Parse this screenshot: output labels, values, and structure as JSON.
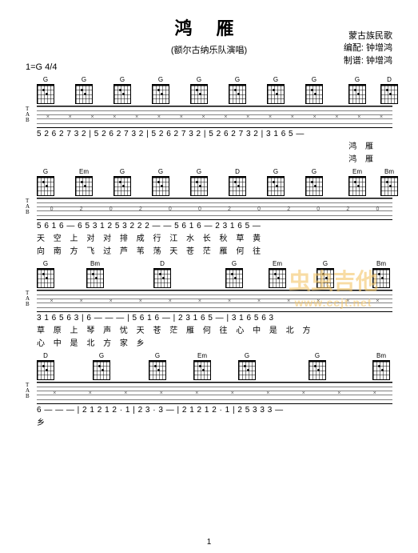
{
  "title": "鸿 雁",
  "subtitle": "(额尔古纳乐队演唱)",
  "credits": {
    "line1": "蒙古族民歌",
    "line2": "编配: 钟增鸿",
    "line3": "制谱: 钟增鸿"
  },
  "key": "1=G 4/4",
  "watermark": {
    "text": "虫虫吉他",
    "url": "www.ccjt.net"
  },
  "systems": [
    {
      "chords": [
        "G",
        "G",
        "G",
        "G",
        "G",
        "G",
        "G",
        "G",
        "G",
        "D"
      ],
      "chord_spacing": [
        0,
        48,
        96,
        144,
        192,
        240,
        288,
        336,
        390,
        430
      ],
      "tab_marks": [
        "×",
        "×",
        "×",
        "×",
        "×",
        "×",
        "×",
        "×",
        "×",
        "×",
        "×",
        "×",
        "×",
        "×",
        "×",
        "×"
      ],
      "jianpu": "5 2 6 2 7 3 2 | 5 2 6 2 7 3 2 | 5 2 6 2 7 3 2 | 5 2 6 2 7 3 2 | 3 1 6 5 —",
      "lyrics1": "",
      "lyrics2_right": "鸿  雁",
      "lyrics3_right": "鸿  雁"
    },
    {
      "chords": [
        "G",
        "Em",
        "G",
        "G",
        "G",
        "D",
        "G",
        "G",
        "Em",
        "Bm"
      ],
      "chord_spacing": [
        0,
        48,
        96,
        144,
        192,
        240,
        288,
        336,
        390,
        430
      ],
      "tab_marks": [
        "0",
        "2",
        "0",
        "2",
        "0",
        "0",
        "2",
        "0",
        "2",
        "0",
        "2",
        "0"
      ],
      "jianpu": "5 6 1 6 — 6 5 3 1 2 5 3 2 2 2 — — 5 6 1 6 — 2 3 1 6 5 —",
      "lyrics1": "天 空 上    对 对 排 成   行         江 水 长    秋 草 黄",
      "lyrics2": "向 南 方    飞 过 芦 苇   荡         天 苍 茫    雁 何 往"
    },
    {
      "chords": [
        "G",
        "Bm",
        "D",
        "G",
        "Em",
        "G",
        "Bm"
      ],
      "chord_spacing": [
        0,
        62,
        146,
        236,
        290,
        350,
        420
      ],
      "tab_marks": [
        "×",
        "×",
        "×",
        "×",
        "×",
        "×",
        "×",
        "×",
        "×",
        "×",
        "×",
        "×"
      ],
      "jianpu": "3 1 6 5 6 3 | 6 — — — | 5 6 1 6 — | 2 3 1 6 5 — | 3 1 6 5 6 3",
      "lyrics1": "草 原 上 琴 声  忧       天 苍 茫    雁 何 往    心 中 是 北 方",
      "lyrics2": "心 中 是 北 方  家       乡"
    },
    {
      "chords": [
        "D",
        "G",
        "G",
        "Em",
        "G",
        "G",
        "Bm"
      ],
      "chord_spacing": [
        0,
        70,
        140,
        196,
        252,
        340,
        420
      ],
      "tab_marks": [
        "×",
        "×",
        "×",
        "×",
        "×",
        "×",
        "×",
        "×",
        "×",
        "×"
      ],
      "jianpu": "6 — — — | 2 1 2 1 2 · 1 | 2 3 · 3 — | 2 1 2 1 2 · 1 | 2 5 3 3 3 —",
      "lyrics1": "乡"
    }
  ],
  "pagenum": "1"
}
